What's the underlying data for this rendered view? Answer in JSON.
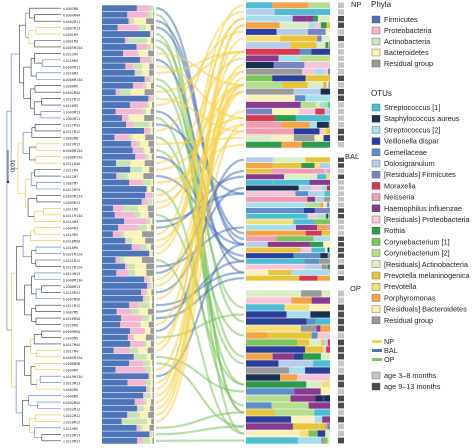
{
  "figure": {
    "scale_label": "0.01",
    "site_labels": [
      "NP",
      "BAL",
      "OP"
    ],
    "phyla_title": "Phyla",
    "phyla": [
      {
        "name": "Firmicutes",
        "color": "#4e74b9"
      },
      {
        "name": "Proteobacteria",
        "color": "#f4b6d2"
      },
      {
        "name": "Actinobacteria",
        "color": "#c9e4b3"
      },
      {
        "name": "Bacteroidetes",
        "color": "#fbf3b6"
      },
      {
        "name": "Residual group",
        "color": "#9a9a9a"
      }
    ],
    "otus_title": "OTUs",
    "otus": [
      {
        "name": "Streptococcus [1]",
        "color": "#4dbdd4"
      },
      {
        "name": "Staphylococcus aureus",
        "color": "#1a2e4e"
      },
      {
        "name": "Streptococcus [2]",
        "color": "#a6ddef"
      },
      {
        "name": "Veillonella dispar",
        "color": "#2a3e9a"
      },
      {
        "name": "Gemellaceae",
        "color": "#5f8fc9"
      },
      {
        "name": "Dolosigranulum",
        "color": "#b5cdea"
      },
      {
        "name": "[Residuals] Firmicutes",
        "color": "#7a84c4"
      },
      {
        "name": "Moraxella",
        "color": "#d73a4e"
      },
      {
        "name": "Neisseria",
        "color": "#f29cb2"
      },
      {
        "name": "Haemophilus influenzae",
        "color": "#8a3a8e"
      },
      {
        "name": "[Residuals] Proteobacteria",
        "color": "#f6c6d8"
      },
      {
        "name": "Rothia",
        "color": "#2e9a4e"
      },
      {
        "name": "Corynebacterium [1]",
        "color": "#7cc55e"
      },
      {
        "name": "Corynebacterium [2]",
        "color": "#b5df8e"
      },
      {
        "name": "[Residuals] Actinobacteria",
        "color": "#d9eec5"
      },
      {
        "name": "Prevotella melaninogenica",
        "color": "#e8c43a"
      },
      {
        "name": "Prevotella",
        "color": "#f5de7a"
      },
      {
        "name": "Porphyromonas",
        "color": "#f4a347"
      },
      {
        "name": "[Residuals] Bacteroidetes",
        "color": "#fbf0b8"
      },
      {
        "name": "Residual group",
        "color": "#9a9a9a"
      }
    ],
    "sites_legend": [
      {
        "name": "NP",
        "color": "#f5d24a"
      },
      {
        "name": "BAL",
        "color": "#4e74b9"
      },
      {
        "name": "OP",
        "color": "#7cc55e"
      }
    ],
    "age_legend": [
      {
        "name": "age 3–8 months",
        "color": "#c4c4c4"
      },
      {
        "name": "age 9–13 months",
        "color": "#4a4a4a"
      }
    ],
    "samples": [
      "s1003M8",
      "b1004M4A",
      "s1002M11",
      "s1007M13",
      "s1001M3",
      "s1001M3",
      "b1005M13A",
      "b1012M4",
      "s1010M4",
      "b1004M11",
      "s1010M3",
      "b1006M13A",
      "s1009M5",
      "b1002M4A",
      "s1017M12",
      "s1018M3",
      "s1003M13",
      "s1004M11",
      "s1017M12",
      "b1017M12",
      "s1003M8",
      "s1022M12",
      "b1008M13A",
      "s1008M13A",
      "b1011M4A",
      "s1011M4",
      "s1012M7",
      "s1007M7",
      "b1012M7A",
      "b1005M13A",
      "s1005M13",
      "s1011M3",
      "b1011M13A",
      "b1014M3",
      "s1004M3",
      "s1013M3",
      "b1018M5A",
      "s1018M5",
      "b1021M12A",
      "s1021M12",
      "b1017M12A",
      "s1014M13",
      "b1008M13A",
      "s1008M13",
      "s1019M12",
      "b1007M5A",
      "s1017M12",
      "s1007M5",
      "b1016M5A",
      "s1016M5",
      "b1009M5A",
      "s1009M5",
      "b1017M4A",
      "s1017M4",
      "b1005M13A",
      "s1006M3B",
      "s1004M4",
      "s1019M13A",
      "s1013M13",
      "s1002M5",
      "s1006M5",
      "b1002M4A",
      "s1022M12",
      "s1022M12",
      "s1018M12",
      "s1019M5",
      "s1019M13",
      "s1019M12"
    ]
  }
}
